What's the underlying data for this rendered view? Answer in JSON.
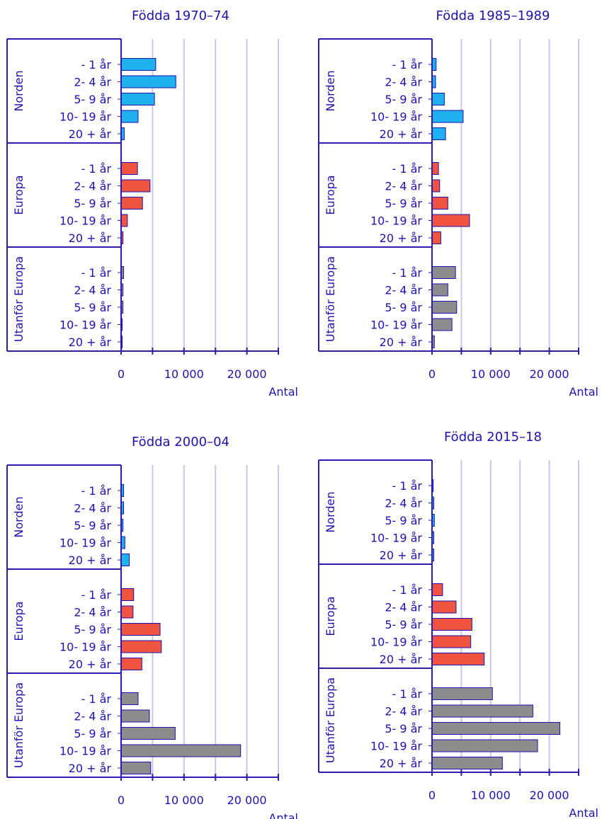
{
  "colors": {
    "axis": "#2b1bb0",
    "text": "#1f12b3",
    "grid": "#c8c8e6",
    "bar_stroke": "#1f12b3",
    "Norden": "#1eb0ef",
    "Europa": "#f0533f",
    "Utanför Europa": "#8c8c8c"
  },
  "x_unit_label": "Antal",
  "chart_data": [
    {
      "type": "bar",
      "orientation": "horizontal",
      "title": "Födda 1970–74",
      "xlabel": "Antal",
      "xlim": [
        0,
        25000
      ],
      "xticks": [
        0,
        10000,
        20000
      ],
      "xtick_labels": [
        "0",
        "10 000",
        "20 000"
      ],
      "grid": true,
      "categories": [
        "- 1 år",
        "2- 4 år",
        "5- 9 år",
        "10- 19 år",
        "20 + år"
      ],
      "series": [
        {
          "name": "Norden",
          "values": [
            5500,
            8700,
            5300,
            2700,
            500
          ]
        },
        {
          "name": "Europa",
          "values": [
            2600,
            4600,
            3400,
            1000,
            300
          ]
        },
        {
          "name": "Utanför Europa",
          "values": [
            400,
            300,
            300,
            100,
            50
          ]
        }
      ]
    },
    {
      "type": "bar",
      "orientation": "horizontal",
      "title": "Födda 1985–1989",
      "xlabel": "Antal",
      "xlim": [
        0,
        25000
      ],
      "xticks": [
        0,
        10000,
        20000
      ],
      "xtick_labels": [
        "0",
        "10 000",
        "20 000"
      ],
      "grid": true,
      "categories": [
        "- 1 år",
        "2- 4 år",
        "5- 9 år",
        "10- 19 år",
        "20 + år"
      ],
      "series": [
        {
          "name": "Norden",
          "values": [
            700,
            600,
            2100,
            5300,
            2300
          ]
        },
        {
          "name": "Europa",
          "values": [
            1100,
            1300,
            2700,
            6400,
            1500
          ]
        },
        {
          "name": "Utanför Europa",
          "values": [
            4000,
            2700,
            4200,
            3400,
            400
          ]
        }
      ]
    },
    {
      "type": "bar",
      "orientation": "horizontal",
      "title": "Födda 2000–04",
      "xlabel": "Antal",
      "xlim": [
        0,
        25000
      ],
      "xticks": [
        0,
        10000,
        20000
      ],
      "xtick_labels": [
        "0",
        "10 000",
        "20 000"
      ],
      "grid": true,
      "categories": [
        "- 1 år",
        "2- 4 år",
        "5- 9 år",
        "10- 19 år",
        "20 + år"
      ],
      "series": [
        {
          "name": "Norden",
          "values": [
            400,
            400,
            300,
            600,
            1300
          ]
        },
        {
          "name": "Europa",
          "values": [
            2000,
            1900,
            6200,
            6400,
            3300
          ]
        },
        {
          "name": "Utanför Europa",
          "values": [
            2700,
            4500,
            8600,
            19000,
            4700
          ]
        }
      ]
    },
    {
      "type": "bar",
      "orientation": "horizontal",
      "title": "Födda 2015–18",
      "xlabel": "Antal",
      "xlim": [
        0,
        25000
      ],
      "xticks": [
        0,
        10000,
        20000
      ],
      "xtick_labels": [
        "0",
        "10 000",
        "20 000"
      ],
      "grid": true,
      "categories": [
        "- 1 år",
        "2- 4 år",
        "5- 9 år",
        "10- 19 år",
        "20 + år"
      ],
      "series": [
        {
          "name": "Norden",
          "values": [
            200,
            300,
            400,
            300,
            300
          ]
        },
        {
          "name": "Europa",
          "values": [
            1800,
            4100,
            6800,
            6600,
            8900
          ]
        },
        {
          "name": "Utanför Europa",
          "values": [
            10300,
            17200,
            21800,
            18000,
            12000
          ]
        }
      ]
    }
  ]
}
